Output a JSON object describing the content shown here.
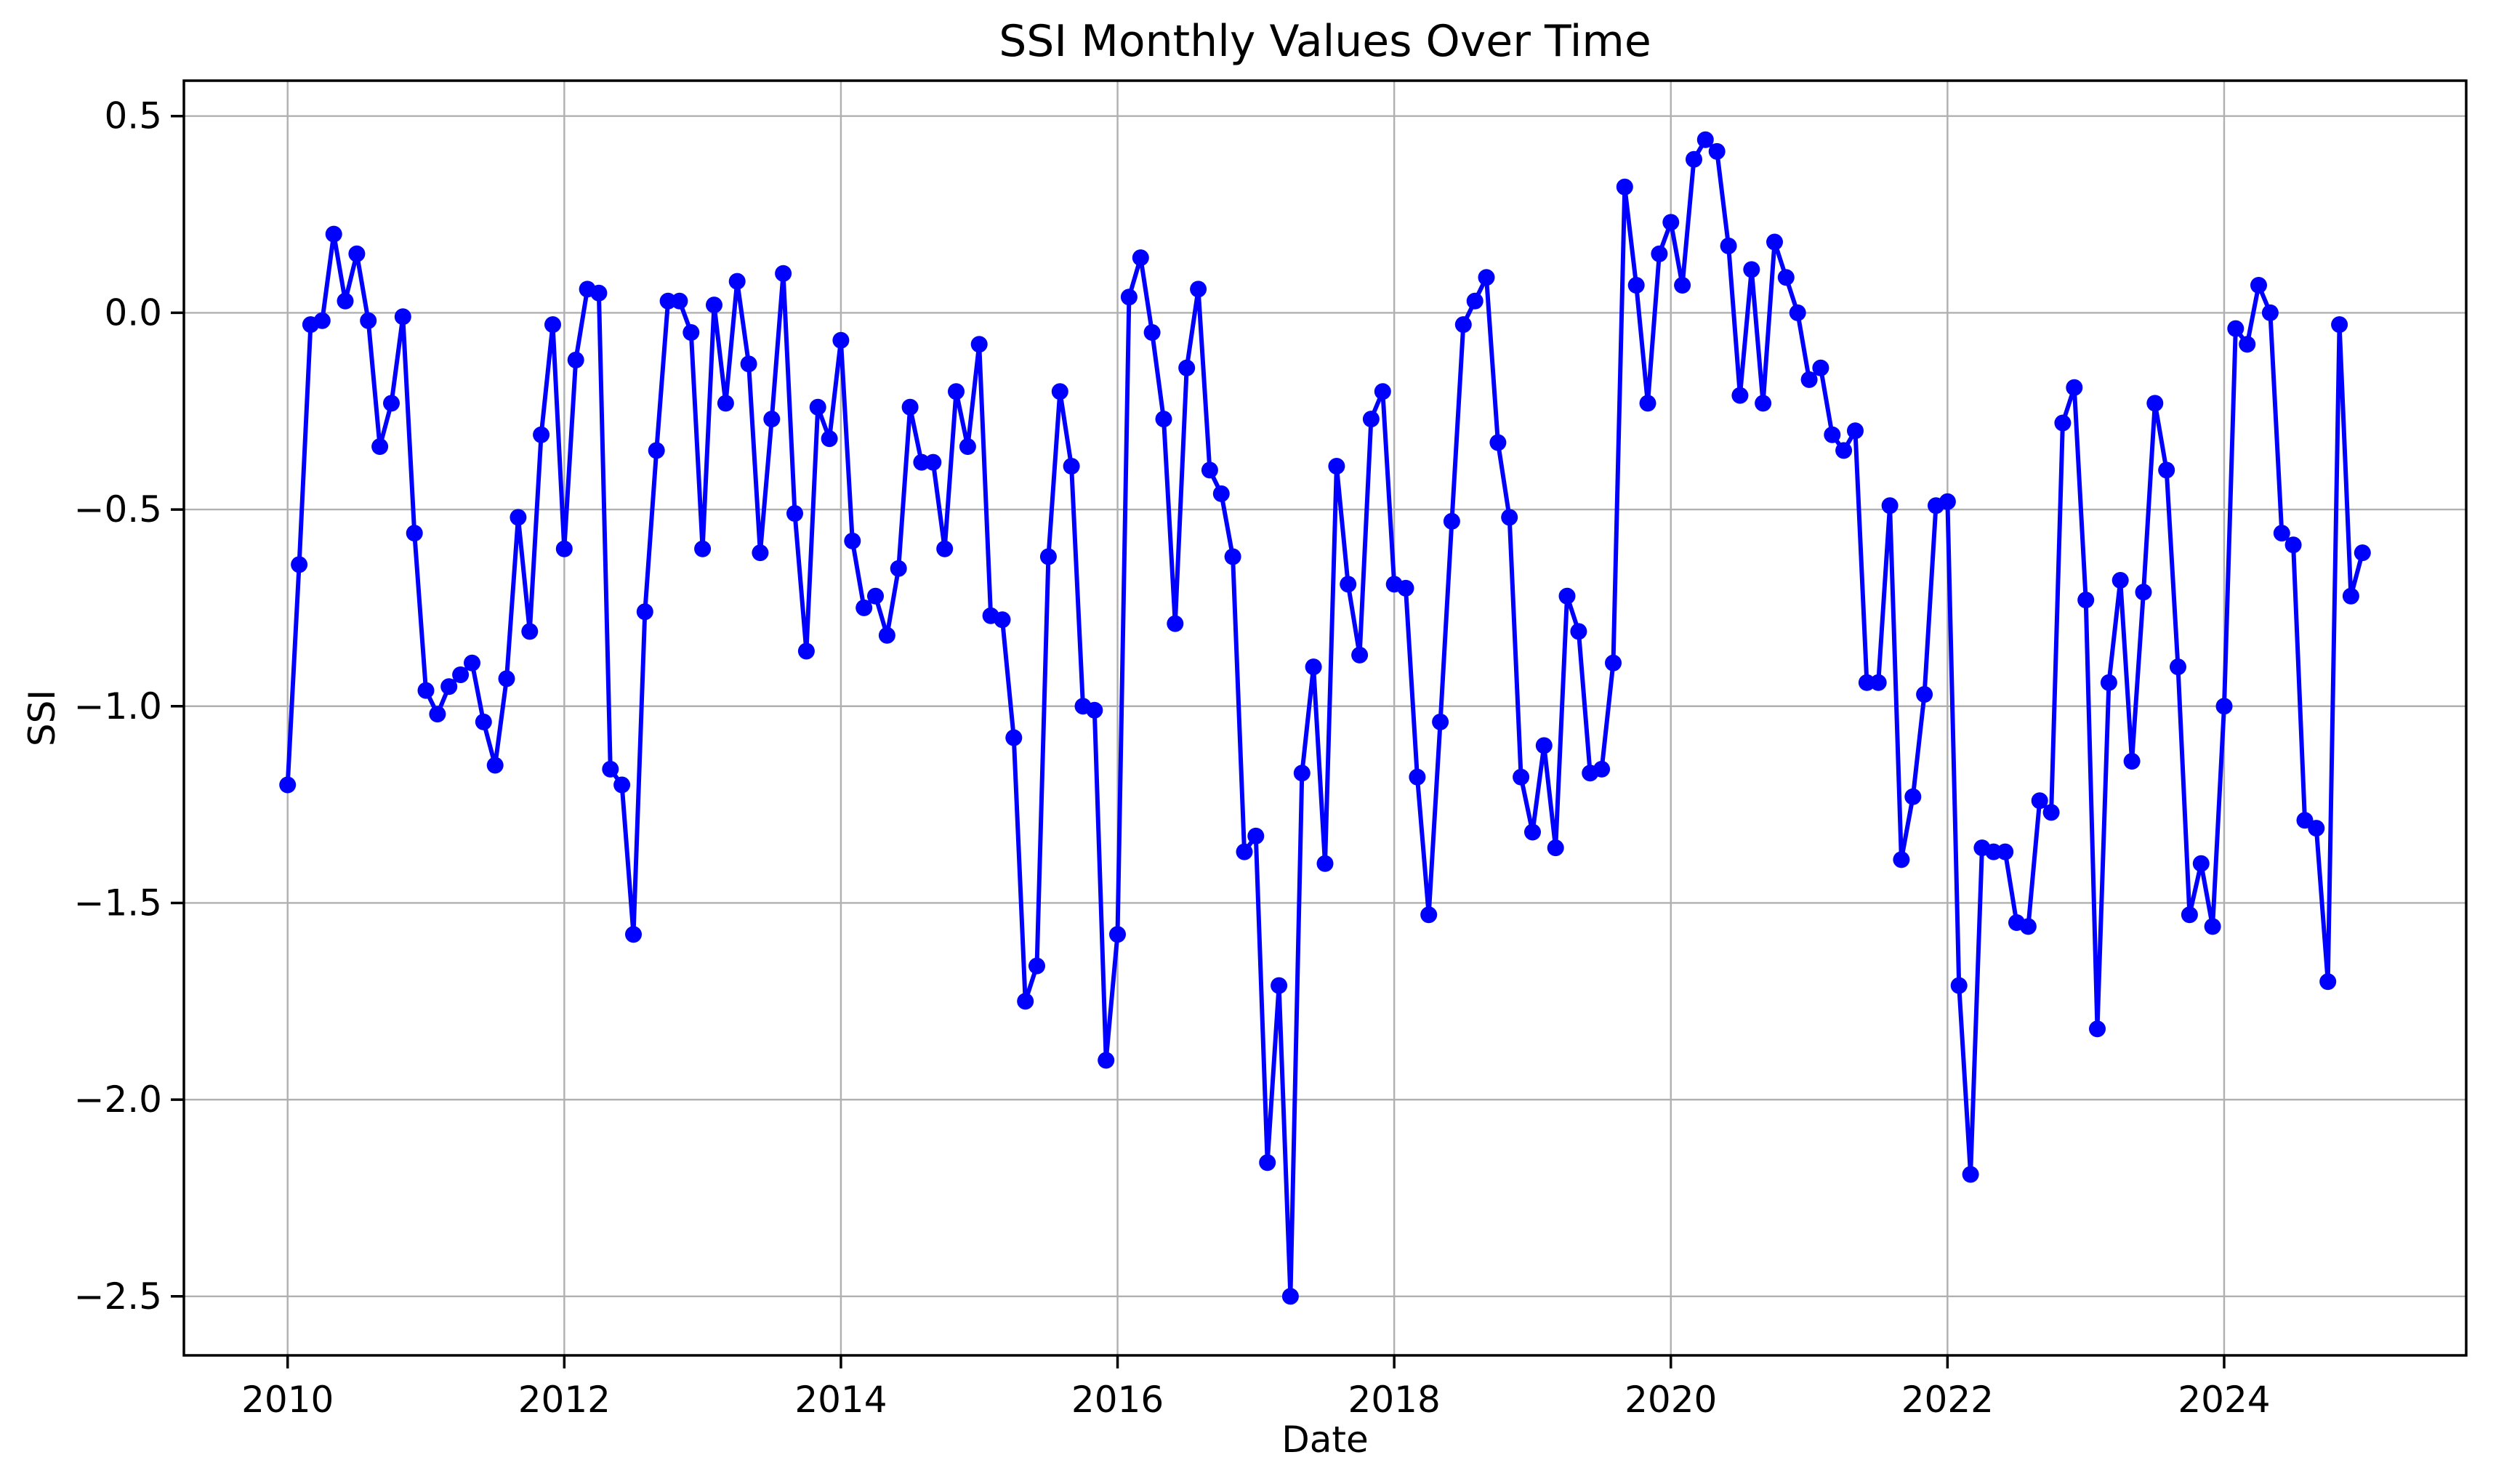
{
  "chart_data": {
    "type": "line",
    "title": "SSI Monthly Values Over Time",
    "xlabel": "Date",
    "ylabel": "SSI",
    "series": [
      {
        "name": "SSI",
        "start_year": 2010,
        "start_month": 1,
        "frequency": "monthly",
        "values": [
          -1.2,
          -0.64,
          -0.03,
          -0.02,
          0.2,
          0.03,
          0.15,
          -0.02,
          -0.34,
          -0.23,
          -0.01,
          -0.56,
          -0.96,
          -1.02,
          -0.95,
          -0.92,
          -0.89,
          -1.04,
          -1.15,
          -0.93,
          -0.52,
          -0.81,
          -0.31,
          -0.03,
          -0.6,
          -0.12,
          0.06,
          0.05,
          -1.16,
          -1.2,
          -1.58,
          -0.76,
          -0.35,
          0.03,
          0.03,
          -0.05,
          -0.6,
          0.02,
          -0.23,
          0.08,
          -0.13,
          -0.61,
          -0.27,
          0.1,
          -0.51,
          -0.86,
          -0.24,
          -0.32,
          -0.07,
          -0.58,
          -0.75,
          -0.72,
          -0.82,
          -0.65,
          -0.24,
          -0.38,
          -0.38,
          -0.6,
          -0.2,
          -0.34,
          -0.08,
          -0.77,
          -0.78,
          -1.08,
          -1.75,
          -1.66,
          -0.62,
          -0.2,
          -0.39,
          -1.0,
          -1.01,
          -1.9,
          -1.58,
          0.04,
          0.14,
          -0.05,
          -0.27,
          -0.79,
          -0.14,
          0.06,
          -0.4,
          -0.46,
          -0.62,
          -1.37,
          -1.33,
          -2.16,
          -1.71,
          -2.5,
          -1.17,
          -0.9,
          -1.4,
          -0.39,
          -0.69,
          -0.87,
          -0.27,
          -0.2,
          -0.69,
          -0.7,
          -1.18,
          -1.53,
          -1.04,
          -0.53,
          -0.03,
          0.03,
          0.09,
          -0.33,
          -0.52,
          -1.18,
          -1.32,
          -1.1,
          -1.36,
          -0.72,
          -0.81,
          -1.17,
          -1.16,
          -0.89,
          0.32,
          0.07,
          -0.23,
          0.15,
          0.23,
          0.07,
          0.39,
          0.44,
          0.41,
          0.17,
          -0.21,
          0.11,
          -0.23,
          0.18,
          0.09,
          0.0,
          -0.17,
          -0.14,
          -0.31,
          -0.35,
          -0.3,
          -0.94,
          -0.94,
          -0.49,
          -1.39,
          -1.23,
          -0.97,
          -0.49,
          -0.48,
          -1.71,
          -2.19,
          -1.36,
          -1.37,
          -1.37,
          -1.55,
          -1.56,
          -1.24,
          -1.27,
          -0.28,
          -0.19,
          -0.73,
          -1.82,
          -0.94,
          -0.68,
          -1.14,
          -0.71,
          -0.23,
          -0.4,
          -0.9,
          -1.53,
          -1.4,
          -1.56,
          -1.0,
          -0.04,
          -0.08,
          0.07,
          0.0,
          -0.56,
          -0.59,
          -1.29,
          -1.31,
          -1.7,
          -0.03,
          -0.72,
          -0.61
        ]
      }
    ],
    "x_tick_years": [
      2010,
      2012,
      2014,
      2016,
      2018,
      2020,
      2022,
      2024
    ],
    "y_ticks": [
      0.5,
      0.0,
      -0.5,
      -1.0,
      -1.5,
      -2.0,
      -2.5
    ],
    "ylim": [
      -2.65,
      0.59
    ],
    "x_pad_months": 9,
    "grid": true,
    "legend_position": "none",
    "line_color": "#0000ff",
    "marker": "circle",
    "grid_color": "#b0b0b0",
    "spine_color": "#000000",
    "text_color": "#000000",
    "background_color": "#ffffff"
  }
}
